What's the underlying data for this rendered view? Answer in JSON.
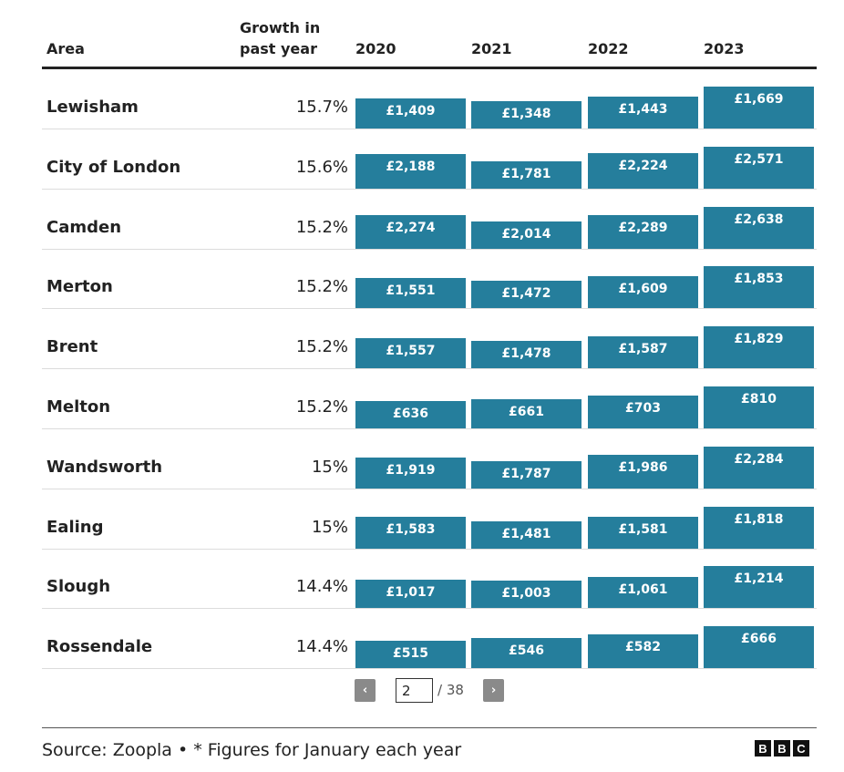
{
  "chart_data": {
    "type": "table",
    "title": "",
    "columns": {
      "area": "Area",
      "growth": "Growth in past year",
      "years": [
        "2020",
        "2021",
        "2022",
        "2023"
      ]
    },
    "rows": [
      {
        "area": "Lewisham",
        "growth": "15.7%",
        "values": [
          1409,
          1348,
          1443,
          1669
        ],
        "labels": [
          "£1,409",
          "£1,348",
          "£1,443",
          "£1,669"
        ]
      },
      {
        "area": "City of London",
        "growth": "15.6%",
        "values": [
          2188,
          1781,
          2224,
          2571
        ],
        "labels": [
          "£2,188",
          "£1,781",
          "£2,224",
          "£2,571"
        ]
      },
      {
        "area": "Camden",
        "growth": "15.2%",
        "values": [
          2274,
          2014,
          2289,
          2638
        ],
        "labels": [
          "£2,274",
          "£2,014",
          "£2,289",
          "£2,638"
        ]
      },
      {
        "area": "Merton",
        "growth": "15.2%",
        "values": [
          1551,
          1472,
          1609,
          1853
        ],
        "labels": [
          "£1,551",
          "£1,472",
          "£1,609",
          "£1,853"
        ]
      },
      {
        "area": "Brent",
        "growth": "15.2%",
        "values": [
          1557,
          1478,
          1587,
          1829
        ],
        "labels": [
          "£1,557",
          "£1,478",
          "£1,587",
          "£1,829"
        ]
      },
      {
        "area": "Melton",
        "growth": "15.2%",
        "values": [
          636,
          661,
          703,
          810
        ],
        "labels": [
          "£636",
          "£661",
          "£703",
          "£810"
        ]
      },
      {
        "area": "Wandsworth",
        "growth": "15%",
        "values": [
          1919,
          1787,
          1986,
          2284
        ],
        "labels": [
          "£1,919",
          "£1,787",
          "£1,986",
          "£2,284"
        ]
      },
      {
        "area": "Ealing",
        "growth": "15%",
        "values": [
          1583,
          1481,
          1581,
          1818
        ],
        "labels": [
          "£1,583",
          "£1,481",
          "£1,581",
          "£1,818"
        ]
      },
      {
        "area": "Slough",
        "growth": "14.4%",
        "values": [
          1017,
          1003,
          1061,
          1214
        ],
        "labels": [
          "£1,017",
          "£1,003",
          "£1,061",
          "£1,214"
        ]
      },
      {
        "area": "Rossendale",
        "growth": "14.4%",
        "values": [
          515,
          546,
          582,
          666
        ],
        "labels": [
          "£515",
          "£546",
          "£582",
          "£666"
        ]
      }
    ],
    "bar_color": "#257e9c"
  },
  "header": {
    "area": "Area",
    "growth_line1": "Growth in",
    "growth_line2": "past year"
  },
  "pagination": {
    "prev_icon": "chevron-left-icon",
    "prev_symbol": "‹",
    "current_page": "2",
    "total_text": "/ 38",
    "next_icon": "chevron-right-icon",
    "next_symbol": "›"
  },
  "footer": {
    "source": "Source: Zoopla • * Figures for January each year",
    "logo": [
      "B",
      "B",
      "C"
    ]
  }
}
